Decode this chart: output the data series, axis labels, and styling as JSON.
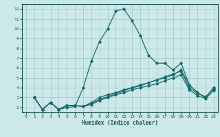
{
  "background_color": "#cce8e8",
  "grid_color": "#a0c8c8",
  "line_color": "#1a6b6b",
  "xlabel": "Humidex (Indice chaleur)",
  "ylim": [
    1.5,
    12.5
  ],
  "xlim": [
    -0.5,
    23.5
  ],
  "yticks": [
    2,
    3,
    4,
    5,
    6,
    7,
    8,
    9,
    10,
    11,
    12
  ],
  "xticks": [
    0,
    1,
    2,
    3,
    4,
    5,
    6,
    7,
    8,
    9,
    10,
    11,
    12,
    13,
    14,
    15,
    16,
    17,
    18,
    19,
    20,
    21,
    22,
    23
  ],
  "lines": [
    {
      "x": [
        1,
        2,
        3,
        4,
        5,
        6,
        7,
        8,
        9,
        10,
        11,
        12,
        13,
        14,
        15,
        16,
        17,
        18,
        19,
        20,
        21,
        22,
        23
      ],
      "y": [
        3.0,
        1.8,
        2.5,
        1.8,
        2.0,
        2.1,
        4.0,
        6.7,
        8.7,
        10.0,
        11.8,
        12.0,
        10.8,
        9.3,
        7.3,
        6.5,
        6.5,
        5.8,
        6.5,
        4.3,
        3.5,
        3.0,
        4.0
      ]
    },
    {
      "x": [
        1,
        2,
        3,
        4,
        5,
        6,
        7,
        8,
        9,
        10,
        11,
        12,
        13,
        14,
        15,
        16,
        17,
        18,
        19,
        20,
        21,
        22,
        23
      ],
      "y": [
        3.0,
        1.8,
        2.5,
        1.8,
        2.2,
        2.2,
        2.1,
        2.5,
        3.0,
        3.3,
        3.5,
        3.8,
        4.0,
        4.3,
        4.5,
        4.8,
        5.0,
        5.3,
        5.8,
        4.3,
        3.5,
        3.0,
        4.0
      ]
    },
    {
      "x": [
        1,
        2,
        3,
        4,
        5,
        6,
        7,
        8,
        9,
        10,
        11,
        12,
        13,
        14,
        15,
        16,
        17,
        18,
        19,
        20,
        21,
        22,
        23
      ],
      "y": [
        3.0,
        1.8,
        2.5,
        1.8,
        2.2,
        2.2,
        2.1,
        2.4,
        2.8,
        3.1,
        3.4,
        3.7,
        4.0,
        4.2,
        4.5,
        4.8,
        5.1,
        5.4,
        5.7,
        4.0,
        3.4,
        3.1,
        3.9
      ]
    },
    {
      "x": [
        1,
        2,
        3,
        4,
        5,
        6,
        7,
        8,
        9,
        10,
        11,
        12,
        13,
        14,
        15,
        16,
        17,
        18,
        19,
        20,
        21,
        22,
        23
      ],
      "y": [
        3.0,
        1.8,
        2.5,
        1.8,
        2.2,
        2.2,
        2.1,
        2.3,
        2.7,
        3.0,
        3.3,
        3.5,
        3.8,
        4.0,
        4.2,
        4.4,
        4.7,
        5.0,
        5.3,
        3.8,
        3.2,
        2.9,
        3.7
      ]
    }
  ]
}
